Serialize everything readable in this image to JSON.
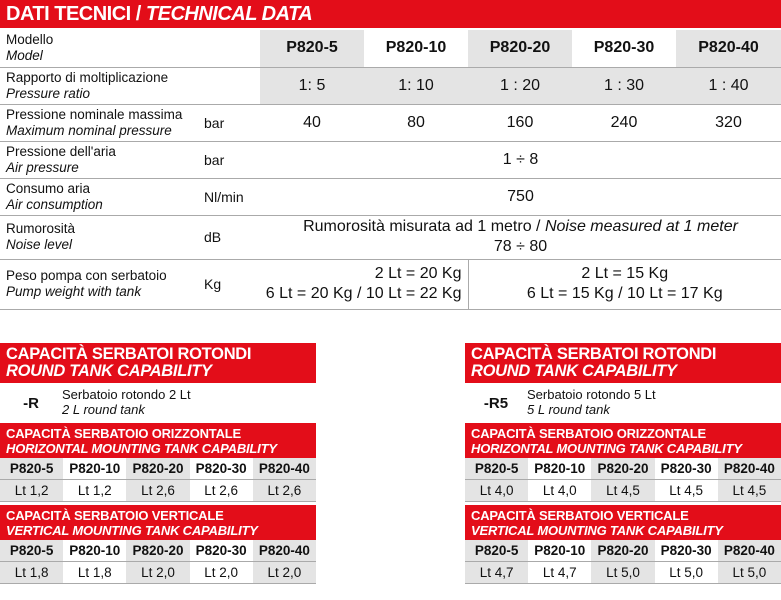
{
  "header": {
    "title_it": "DATI TECNICI /",
    "title_en": "TECHNICAL DATA"
  },
  "tech": {
    "model_label": {
      "it": "Modello",
      "en": "Model"
    },
    "models": [
      "P820-5",
      "P820-10",
      "P820-20",
      "P820-30",
      "P820-40"
    ],
    "ratio": {
      "it": "Rapporto di moltiplicazione",
      "en": "Pressure ratio",
      "values": [
        "1: 5",
        "1: 10",
        "1 : 20",
        "1 : 30",
        "1 : 40"
      ]
    },
    "max_pressure": {
      "it": "Pressione nominale massima",
      "en": "Maximum nominal pressure",
      "unit": "bar",
      "values": [
        "40",
        "80",
        "160",
        "240",
        "320"
      ]
    },
    "air_pressure": {
      "it": "Pressione dell'aria",
      "en": "Air pressure",
      "unit": "bar",
      "value": "1 ÷ 8"
    },
    "air_consumption": {
      "it": "Consumo aria",
      "en": "Air consumption",
      "unit": "Nl/min",
      "value": "750"
    },
    "noise": {
      "it": "Rumorosità",
      "en": "Noise level",
      "unit": "dB",
      "note_it": "Rumorosità misurata ad 1 metro /",
      "note_en": "Noise measured at 1 meter",
      "value": "78 ÷ 80"
    },
    "weight": {
      "it": "Peso pompa con serbatoio",
      "en": "Pump weight with tank",
      "unit": "Kg",
      "left_1": "2 Lt = 20 Kg",
      "left_2": "6 Lt = 20 Kg / 10 Lt = 22 Kg",
      "right_1": "2 Lt = 15 Kg",
      "right_2": "6 Lt = 15 Kg / 10 Lt = 17 Kg"
    }
  },
  "panels": [
    {
      "title_it": "CAPACITÀ SERBATOI ROTONDI",
      "title_en": "ROUND TANK CAPABILITY",
      "code": "-R",
      "desc_it": "Serbatoio rotondo 2 Lt",
      "desc_en": "2 L round tank",
      "horiz_it": "CAPACITÀ SERBATOIO ORIZZONTALE",
      "horiz_en": "HORIZONTAL MOUNTING TANK CAPABILITY",
      "horiz_values": [
        "Lt 1,2",
        "Lt 1,2",
        "Lt 2,6",
        "Lt 2,6",
        "Lt 2,6"
      ],
      "vert_it": "CAPACITÀ SERBATOIO VERTICALE",
      "vert_en": "VERTICAL MOUNTING TANK CAPABILITY",
      "vert_values": [
        "Lt 1,8",
        "Lt 1,8",
        "Lt 2,0",
        "Lt 2,0",
        "Lt 2,0"
      ]
    },
    {
      "title_it": "CAPACITÀ SERBATOI ROTONDI",
      "title_en": "ROUND TANK CAPABILITY",
      "code": "-R5",
      "desc_it": "Serbatoio rotondo 5 Lt",
      "desc_en": "5 L round tank",
      "horiz_it": "CAPACITÀ SERBATOIO ORIZZONTALE",
      "horiz_en": "HORIZONTAL MOUNTING TANK CAPABILITY",
      "horiz_values": [
        "Lt 4,0",
        "Lt 4,0",
        "Lt 4,5",
        "Lt 4,5",
        "Lt 4,5"
      ],
      "vert_it": "CAPACITÀ SERBATOIO VERTICALE",
      "vert_en": "VERTICAL MOUNTING TANK CAPABILITY",
      "vert_values": [
        "Lt 4,7",
        "Lt 4,7",
        "Lt 5,0",
        "Lt 5,0",
        "Lt 5,0"
      ]
    }
  ],
  "colors": {
    "accent": "#e30d19",
    "shade": "#e4e4e4"
  }
}
